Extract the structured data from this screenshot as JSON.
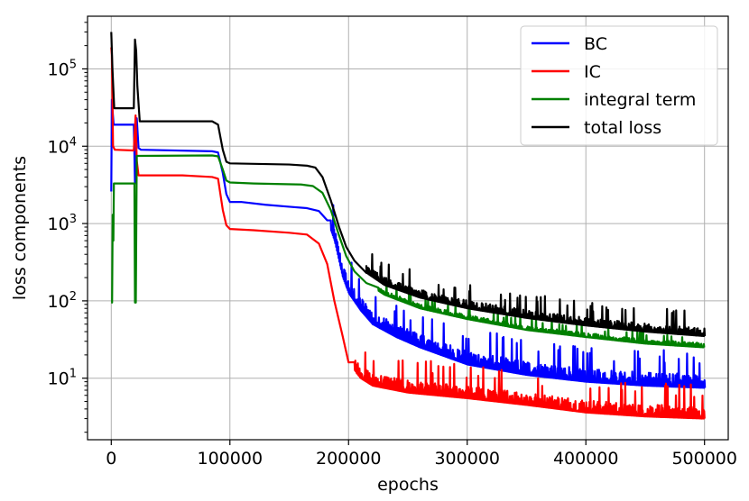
{
  "chart_data": {
    "type": "line",
    "title": "",
    "xlabel": "epochs",
    "ylabel": "loss components",
    "xlim": [
      -20000,
      520000
    ],
    "ylim": [
      1.6,
      480000
    ],
    "yscale": "log",
    "grid": true,
    "legend_position": "top-right",
    "x_ticks": [
      0,
      100000,
      200000,
      300000,
      400000,
      500000
    ],
    "x_tick_labels": [
      "0",
      "100000",
      "200000",
      "300000",
      "400000",
      "500000"
    ],
    "y_ticks": [
      10,
      100,
      1000,
      10000,
      100000
    ],
    "y_tick_labels": [
      {
        "base": "10",
        "exp": "1"
      },
      {
        "base": "10",
        "exp": "2"
      },
      {
        "base": "10",
        "exp": "3"
      },
      {
        "base": "10",
        "exp": "4"
      },
      {
        "base": "10",
        "exp": "5"
      }
    ],
    "series": [
      {
        "name": "BC",
        "color": "#0000ff",
        "noise_from": 185000,
        "noise_amp": 0.9,
        "points": [
          [
            0,
            2600
          ],
          [
            500,
            40000
          ],
          [
            1000,
            30000
          ],
          [
            2000,
            19000
          ],
          [
            19000,
            19000
          ],
          [
            20000,
            3300
          ],
          [
            21500,
            23000
          ],
          [
            23000,
            9500
          ],
          [
            25000,
            9000
          ],
          [
            85000,
            8600
          ],
          [
            90000,
            8300
          ],
          [
            94000,
            4500
          ],
          [
            97000,
            2400
          ],
          [
            100000,
            1900
          ],
          [
            110000,
            1900
          ],
          [
            130000,
            1750
          ],
          [
            150000,
            1650
          ],
          [
            165000,
            1580
          ],
          [
            175000,
            1450
          ],
          [
            182000,
            1100
          ],
          [
            188000,
            600
          ],
          [
            195000,
            200
          ],
          [
            200000,
            125
          ],
          [
            210000,
            75
          ],
          [
            220000,
            50
          ],
          [
            240000,
            34
          ],
          [
            260000,
            25
          ],
          [
            300000,
            15
          ],
          [
            350000,
            11
          ],
          [
            400000,
            9
          ],
          [
            450000,
            8
          ],
          [
            500000,
            7.5
          ]
        ]
      },
      {
        "name": "IC",
        "color": "#ff0000",
        "noise_from": 205000,
        "noise_amp": 0.8,
        "points": [
          [
            0,
            190000
          ],
          [
            500,
            150000
          ],
          [
            1500,
            10000
          ],
          [
            3000,
            9000
          ],
          [
            19000,
            8800
          ],
          [
            20500,
            25000
          ],
          [
            21500,
            6500
          ],
          [
            23000,
            4200
          ],
          [
            60000,
            4200
          ],
          [
            85000,
            4000
          ],
          [
            90000,
            3800
          ],
          [
            94000,
            1500
          ],
          [
            97000,
            950
          ],
          [
            100000,
            850
          ],
          [
            120000,
            820
          ],
          [
            150000,
            760
          ],
          [
            165000,
            720
          ],
          [
            175000,
            550
          ],
          [
            182000,
            300
          ],
          [
            188000,
            100
          ],
          [
            195000,
            35
          ],
          [
            200000,
            16
          ],
          [
            210000,
            10
          ],
          [
            220000,
            8
          ],
          [
            250000,
            6.5
          ],
          [
            300000,
            5.5
          ],
          [
            350000,
            4.5
          ],
          [
            400000,
            3.6
          ],
          [
            450000,
            3.2
          ],
          [
            500000,
            3
          ]
        ]
      },
      {
        "name": "integral term",
        "color": "#008000",
        "noise_from": 225000,
        "noise_amp": 0.25,
        "points": [
          [
            0,
            95
          ],
          [
            700,
            95
          ],
          [
            1200,
            1300
          ],
          [
            1800,
            600
          ],
          [
            2200,
            3300
          ],
          [
            19500,
            3300
          ],
          [
            20000,
            95
          ],
          [
            20700,
            95
          ],
          [
            21500,
            7500
          ],
          [
            23000,
            7500
          ],
          [
            85000,
            7600
          ],
          [
            90000,
            7400
          ],
          [
            94000,
            5000
          ],
          [
            97000,
            3600
          ],
          [
            100000,
            3400
          ],
          [
            120000,
            3300
          ],
          [
            160000,
            3200
          ],
          [
            170000,
            3050
          ],
          [
            178000,
            2500
          ],
          [
            185000,
            1500
          ],
          [
            192000,
            700
          ],
          [
            198000,
            380
          ],
          [
            205000,
            240
          ],
          [
            215000,
            170
          ],
          [
            230000,
            120
          ],
          [
            260000,
            80
          ],
          [
            300000,
            58
          ],
          [
            350000,
            42
          ],
          [
            400000,
            34
          ],
          [
            450000,
            28
          ],
          [
            500000,
            25
          ]
        ]
      },
      {
        "name": "total loss",
        "color": "#000000",
        "noise_from": 215000,
        "noise_amp": 0.5,
        "points": [
          [
            0,
            300000
          ],
          [
            1000,
            100000
          ],
          [
            2500,
            31000
          ],
          [
            19000,
            31000
          ],
          [
            20000,
            240000
          ],
          [
            21000,
            170000
          ],
          [
            22000,
            60000
          ],
          [
            24000,
            21000
          ],
          [
            60000,
            21000
          ],
          [
            85000,
            21000
          ],
          [
            90000,
            19000
          ],
          [
            94000,
            9000
          ],
          [
            97000,
            6300
          ],
          [
            100000,
            6000
          ],
          [
            150000,
            5800
          ],
          [
            165000,
            5600
          ],
          [
            172000,
            5300
          ],
          [
            178000,
            4000
          ],
          [
            185000,
            2000
          ],
          [
            192000,
            900
          ],
          [
            198000,
            500
          ],
          [
            205000,
            330
          ],
          [
            215000,
            230
          ],
          [
            230000,
            160
          ],
          [
            260000,
            110
          ],
          [
            300000,
            80
          ],
          [
            350000,
            60
          ],
          [
            400000,
            48
          ],
          [
            450000,
            40
          ],
          [
            500000,
            35
          ]
        ]
      }
    ]
  }
}
